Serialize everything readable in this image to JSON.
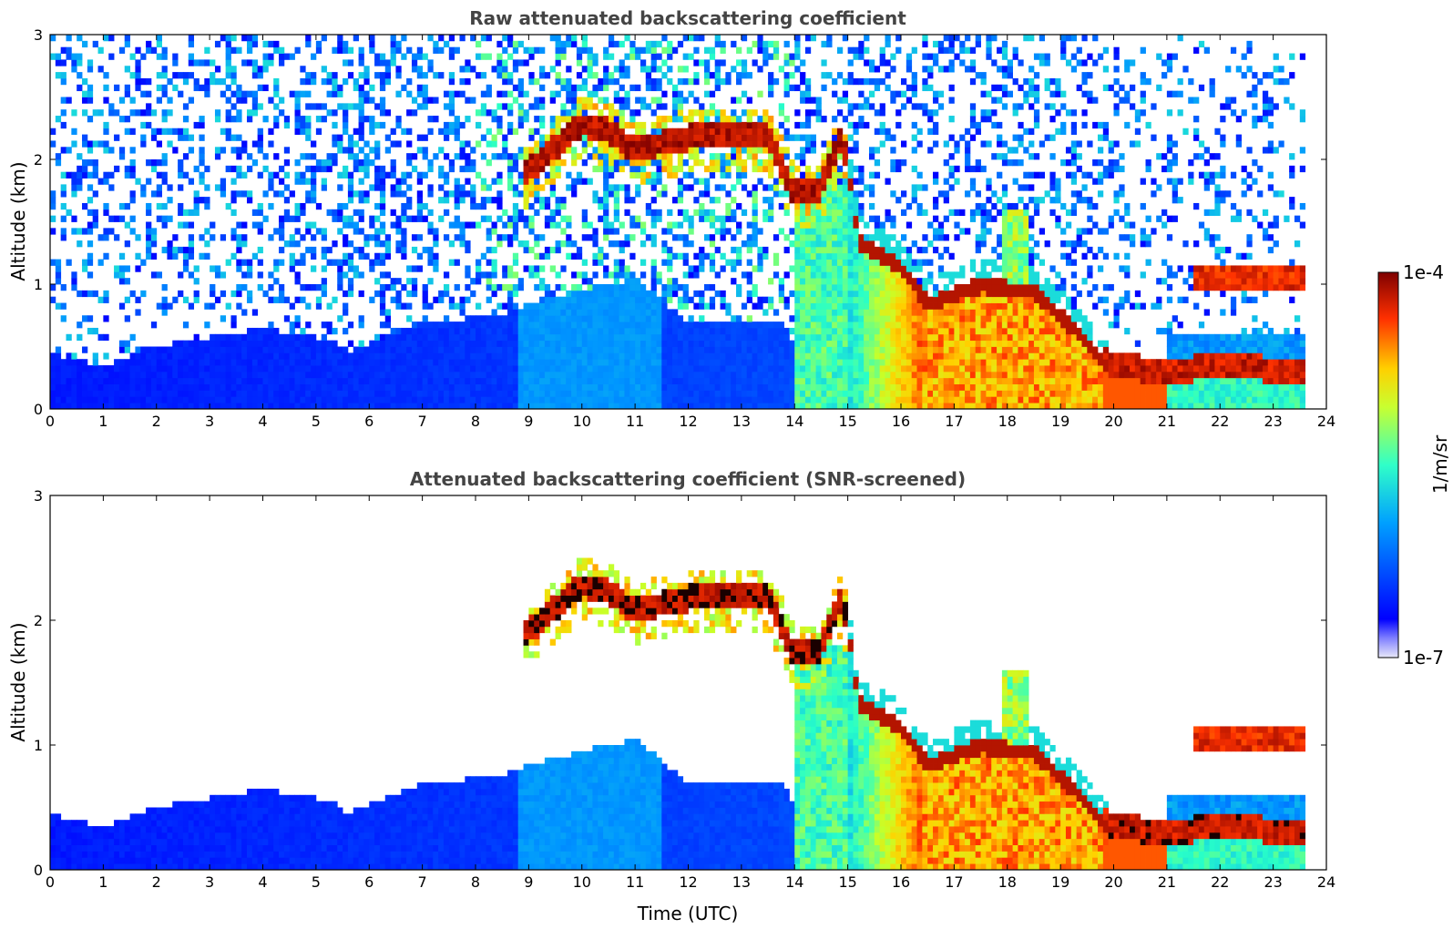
{
  "chart_data": [
    {
      "type": "heatmap",
      "title": "Raw attenuated backscattering coefficient",
      "xlabel": "",
      "ylabel": "Altitude (km)",
      "xlim": [
        0,
        24
      ],
      "ylim": [
        0,
        3
      ],
      "x_ticks": [
        "0",
        "1",
        "2",
        "3",
        "4",
        "5",
        "6",
        "7",
        "8",
        "9",
        "10",
        "11",
        "12",
        "13",
        "14",
        "15",
        "16",
        "17",
        "18",
        "19",
        "20",
        "21",
        "22",
        "23",
        "24"
      ],
      "y_ticks": [
        "0",
        "1",
        "2",
        "3"
      ],
      "data_end_time": 23.6,
      "features": [
        {
          "name": "boundary-layer aerosol",
          "t": [
            0,
            8.5
          ],
          "base_km": 0.0,
          "top_km": [
            0.45,
            0.7
          ],
          "level": "low"
        },
        {
          "name": "elevated cloud layer",
          "t": [
            8.9,
            13.8
          ],
          "height_km": [
            2.0,
            2.4
          ],
          "level": "high"
        },
        {
          "name": "descending cloud",
          "t": [
            13.8,
            15.0
          ],
          "height_km": [
            2.3,
            1.8
          ],
          "level": "high"
        },
        {
          "name": "precipitation / low cloud",
          "t": [
            15.0,
            19.8
          ],
          "height_km": [
            0.0,
            1.3
          ],
          "level": "medium-high"
        },
        {
          "name": "low cloud layer",
          "t": [
            19.8,
            23.6
          ],
          "height_km": [
            0.2,
            0.45
          ],
          "level": "high"
        },
        {
          "name": "upper layer late",
          "t": [
            21.5,
            23.6
          ],
          "height_km": [
            1.0,
            1.2
          ],
          "level": "high"
        }
      ]
    },
    {
      "type": "heatmap",
      "title": "Attenuated backscattering coefficient (SNR-screened)",
      "xlabel": "Time (UTC)",
      "ylabel": "Altitude (km)",
      "xlim": [
        0,
        24
      ],
      "ylim": [
        0,
        3
      ],
      "x_ticks": [
        "0",
        "1",
        "2",
        "3",
        "4",
        "5",
        "6",
        "7",
        "8",
        "9",
        "10",
        "11",
        "12",
        "13",
        "14",
        "15",
        "16",
        "17",
        "18",
        "19",
        "20",
        "21",
        "22",
        "23",
        "24"
      ],
      "y_ticks": [
        "0",
        "1",
        "2",
        "3"
      ],
      "data_end_time": 23.6,
      "screened": true
    }
  ],
  "colorbar": {
    "label": "1/m/sr",
    "max_label": "1e-4",
    "min_label": "1e-7",
    "colormap": "jet",
    "scale": "log"
  },
  "colors": {
    "title": "#444444",
    "low": "#0a2cff",
    "medium": "#17c7e6",
    "high": "#ff7a00",
    "max": "#7f0000"
  }
}
